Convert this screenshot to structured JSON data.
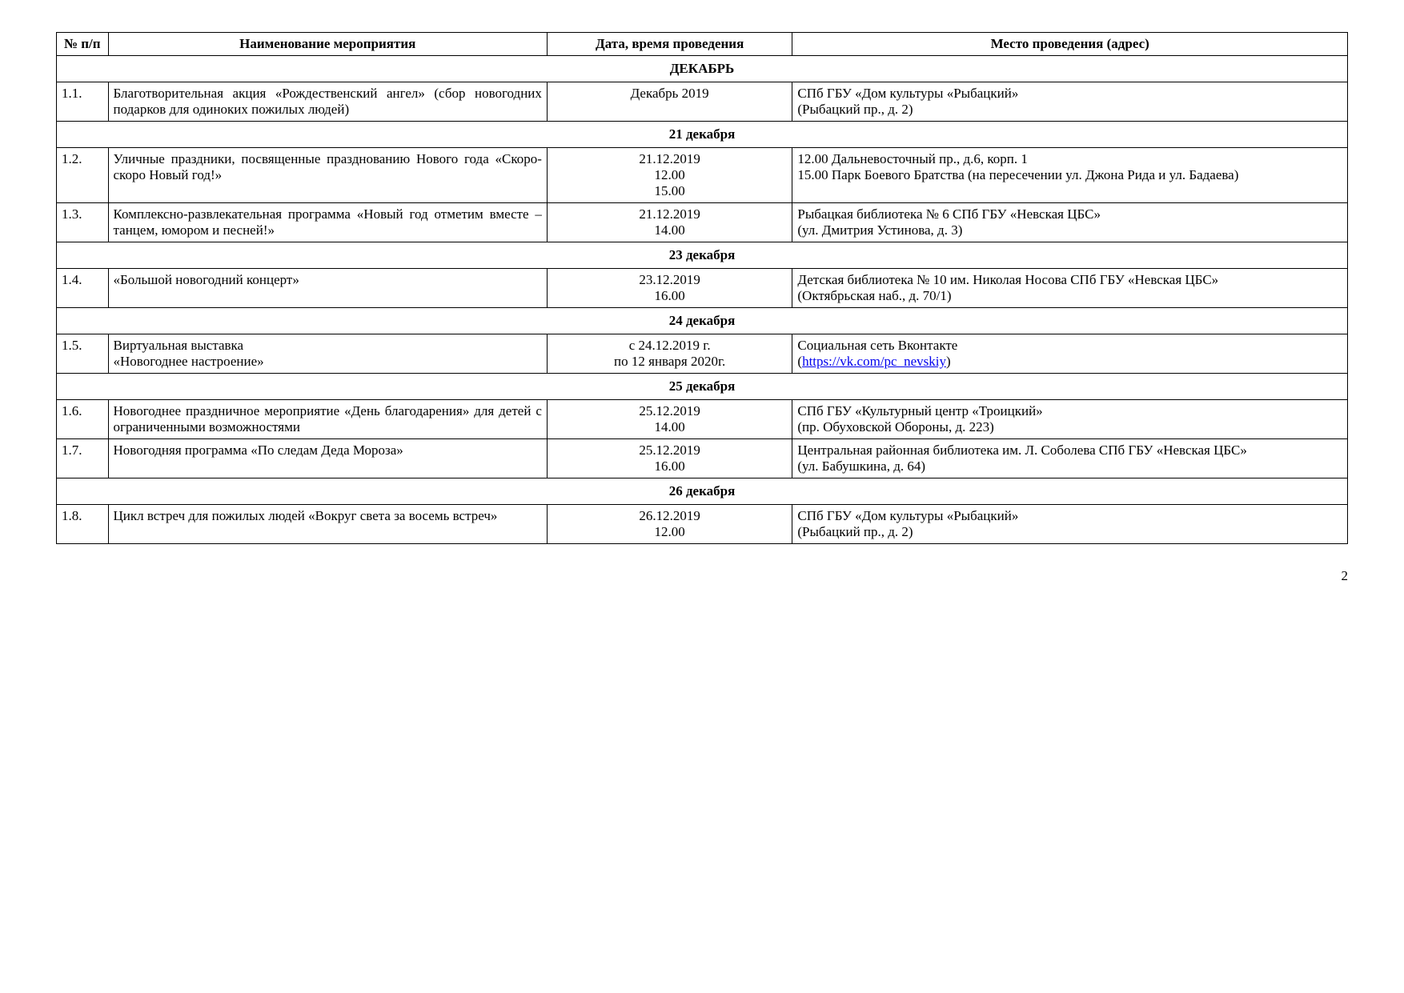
{
  "columns": {
    "num": "№ п/п",
    "name": "Наименование мероприятия",
    "date": "Дата, время проведения",
    "place": "Место проведения (адрес)"
  },
  "sections": [
    {
      "title": "ДЕКАБРЬ",
      "rows": [
        {
          "num": "1.1.",
          "name": "Благотворительная акция «Рождественский ангел» (сбор новогодних подарков для одиноких пожилых людей)",
          "date": "Декабрь 2019",
          "place": "СПб ГБУ «Дом культуры «Рыбацкий»\n(Рыбацкий пр., д. 2)"
        }
      ]
    },
    {
      "title": "21 декабря",
      "rows": [
        {
          "num": "1.2.",
          "name": "Уличные праздники, посвященные празднованию Нового года «Скоро-скоро Новый год!»",
          "date": "21.12.2019\n12.00\n15.00",
          "place": "12.00 Дальневосточный пр., д.6, корп. 1\n15.00 Парк Боевого Братства (на пересечении ул. Джона Рида и ул. Бадаева)"
        },
        {
          "num": "1.3.",
          "name": "Комплексно-развлекательная программа «Новый год отметим вместе – танцем, юмором и песней!»",
          "date": "21.12.2019\n14.00",
          "place": "Рыбацкая библиотека № 6 СПб ГБУ «Невская ЦБС»\n(ул. Дмитрия Устинова, д. 3)"
        }
      ]
    },
    {
      "title": "23 декабря",
      "rows": [
        {
          "num": "1.4.",
          "name": "«Большой новогодний концерт»",
          "date": "23.12.2019\n16.00",
          "place": "Детская библиотека № 10 им. Николая Носова СПб ГБУ «Невская ЦБС»\n(Октябрьская наб., д. 70/1)"
        }
      ]
    },
    {
      "title": "24 декабря",
      "rows": [
        {
          "num": "1.5.",
          "name": "Виртуальная выставка\n«Новогоднее настроение»",
          "date": "с 24.12.2019 г.\nпо 12 января 2020г.",
          "place_prefix": "Социальная сеть Вконтакте\n(",
          "link_text": "https://vk.com/pc_nevskiy",
          "link_href": "https://vk.com/pc_nevskiy",
          "place_suffix": ")"
        }
      ]
    },
    {
      "title": "25 декабря",
      "rows": [
        {
          "num": "1.6.",
          "name": "Новогоднее праздничное мероприятие «День благодарения» для детей с ограниченными возможностями",
          "date": "25.12.2019\n14.00",
          "place": "СПб ГБУ «Культурный центр «Троицкий»\n(пр. Обуховской Обороны, д. 223)"
        },
        {
          "num": "1.7.",
          "name": "Новогодняя программа «По следам Деда Мороза»",
          "date": "25.12.2019\n16.00",
          "place": "Центральная районная библиотека им. Л. Соболева СПб ГБУ «Невская ЦБС»\n(ул. Бабушкина, д. 64)"
        }
      ]
    },
    {
      "title": "26 декабря",
      "rows": [
        {
          "num": "1.8.",
          "name": "Цикл встреч для пожилых людей «Вокруг света за восемь встреч»",
          "date": "26.12.2019\n12.00",
          "place": "СПб ГБУ «Дом культуры «Рыбацкий»\n(Рыбацкий пр., д. 2)"
        }
      ]
    }
  ],
  "page_number": "2"
}
